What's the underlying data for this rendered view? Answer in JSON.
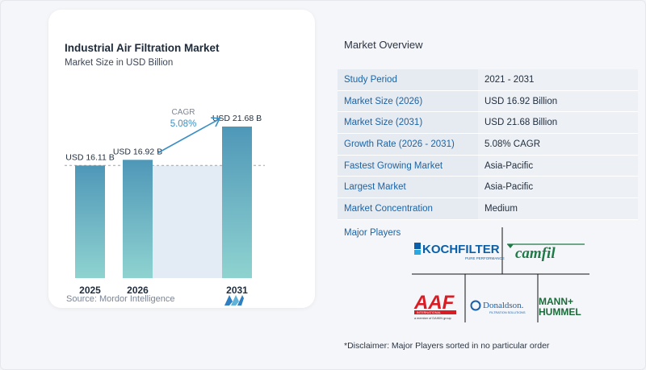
{
  "chart_data": {
    "type": "bar",
    "title": "Industrial Air Filtration Market",
    "subtitle": "Market Size in USD Billion",
    "categories": [
      "2025",
      "2026",
      "2031"
    ],
    "values": [
      16.11,
      16.92,
      21.68
    ],
    "value_labels": [
      "USD 16.11 B",
      "USD 16.92 B",
      "USD 21.68 B"
    ],
    "annotation": {
      "label": "CAGR",
      "value": "5.08%"
    },
    "source": "Source:  Mordor Intelligence",
    "colors": {
      "bar_top": "#4f97b8",
      "bar_bottom": "#8fd3d0",
      "band": "#e3ecf4",
      "accent": "#3a8fc4"
    }
  },
  "overview": {
    "title": "Market Overview",
    "rows": [
      {
        "key": "Study Period",
        "value": "2021 - 2031"
      },
      {
        "key": "Market Size (2026)",
        "value": "USD 16.92 Billion"
      },
      {
        "key": "Market Size (2031)",
        "value": "USD 21.68 Billion"
      },
      {
        "key": "Growth Rate (2026 - 2031)",
        "value": "5.08% CAGR"
      },
      {
        "key": "Fastest Growing Market",
        "value": "Asia-Pacific"
      },
      {
        "key": "Largest Market",
        "value": "Asia-Pacific"
      },
      {
        "key": "Market Concentration",
        "value": "Medium"
      }
    ]
  },
  "players": {
    "label": "Major Players",
    "logos": [
      {
        "name": "KOCH FILTER",
        "text": "KOCHFILTER",
        "tag": "PURE PERFORMANCE"
      },
      {
        "name": "Camfil",
        "text": "camfil"
      },
      {
        "name": "AAF International",
        "text": "AAF",
        "tag": "INTERNATIONAL",
        "sub": "a member of DAIKIN group"
      },
      {
        "name": "Donaldson",
        "text": "Donaldson.",
        "tag": "FILTRATION SOLUTIONS"
      },
      {
        "name": "MANN+HUMMEL",
        "text1": "MANN+",
        "text2": "HUMMEL"
      }
    ]
  },
  "disclaimer": "*Disclaimer: Major Players sorted in no particular order"
}
